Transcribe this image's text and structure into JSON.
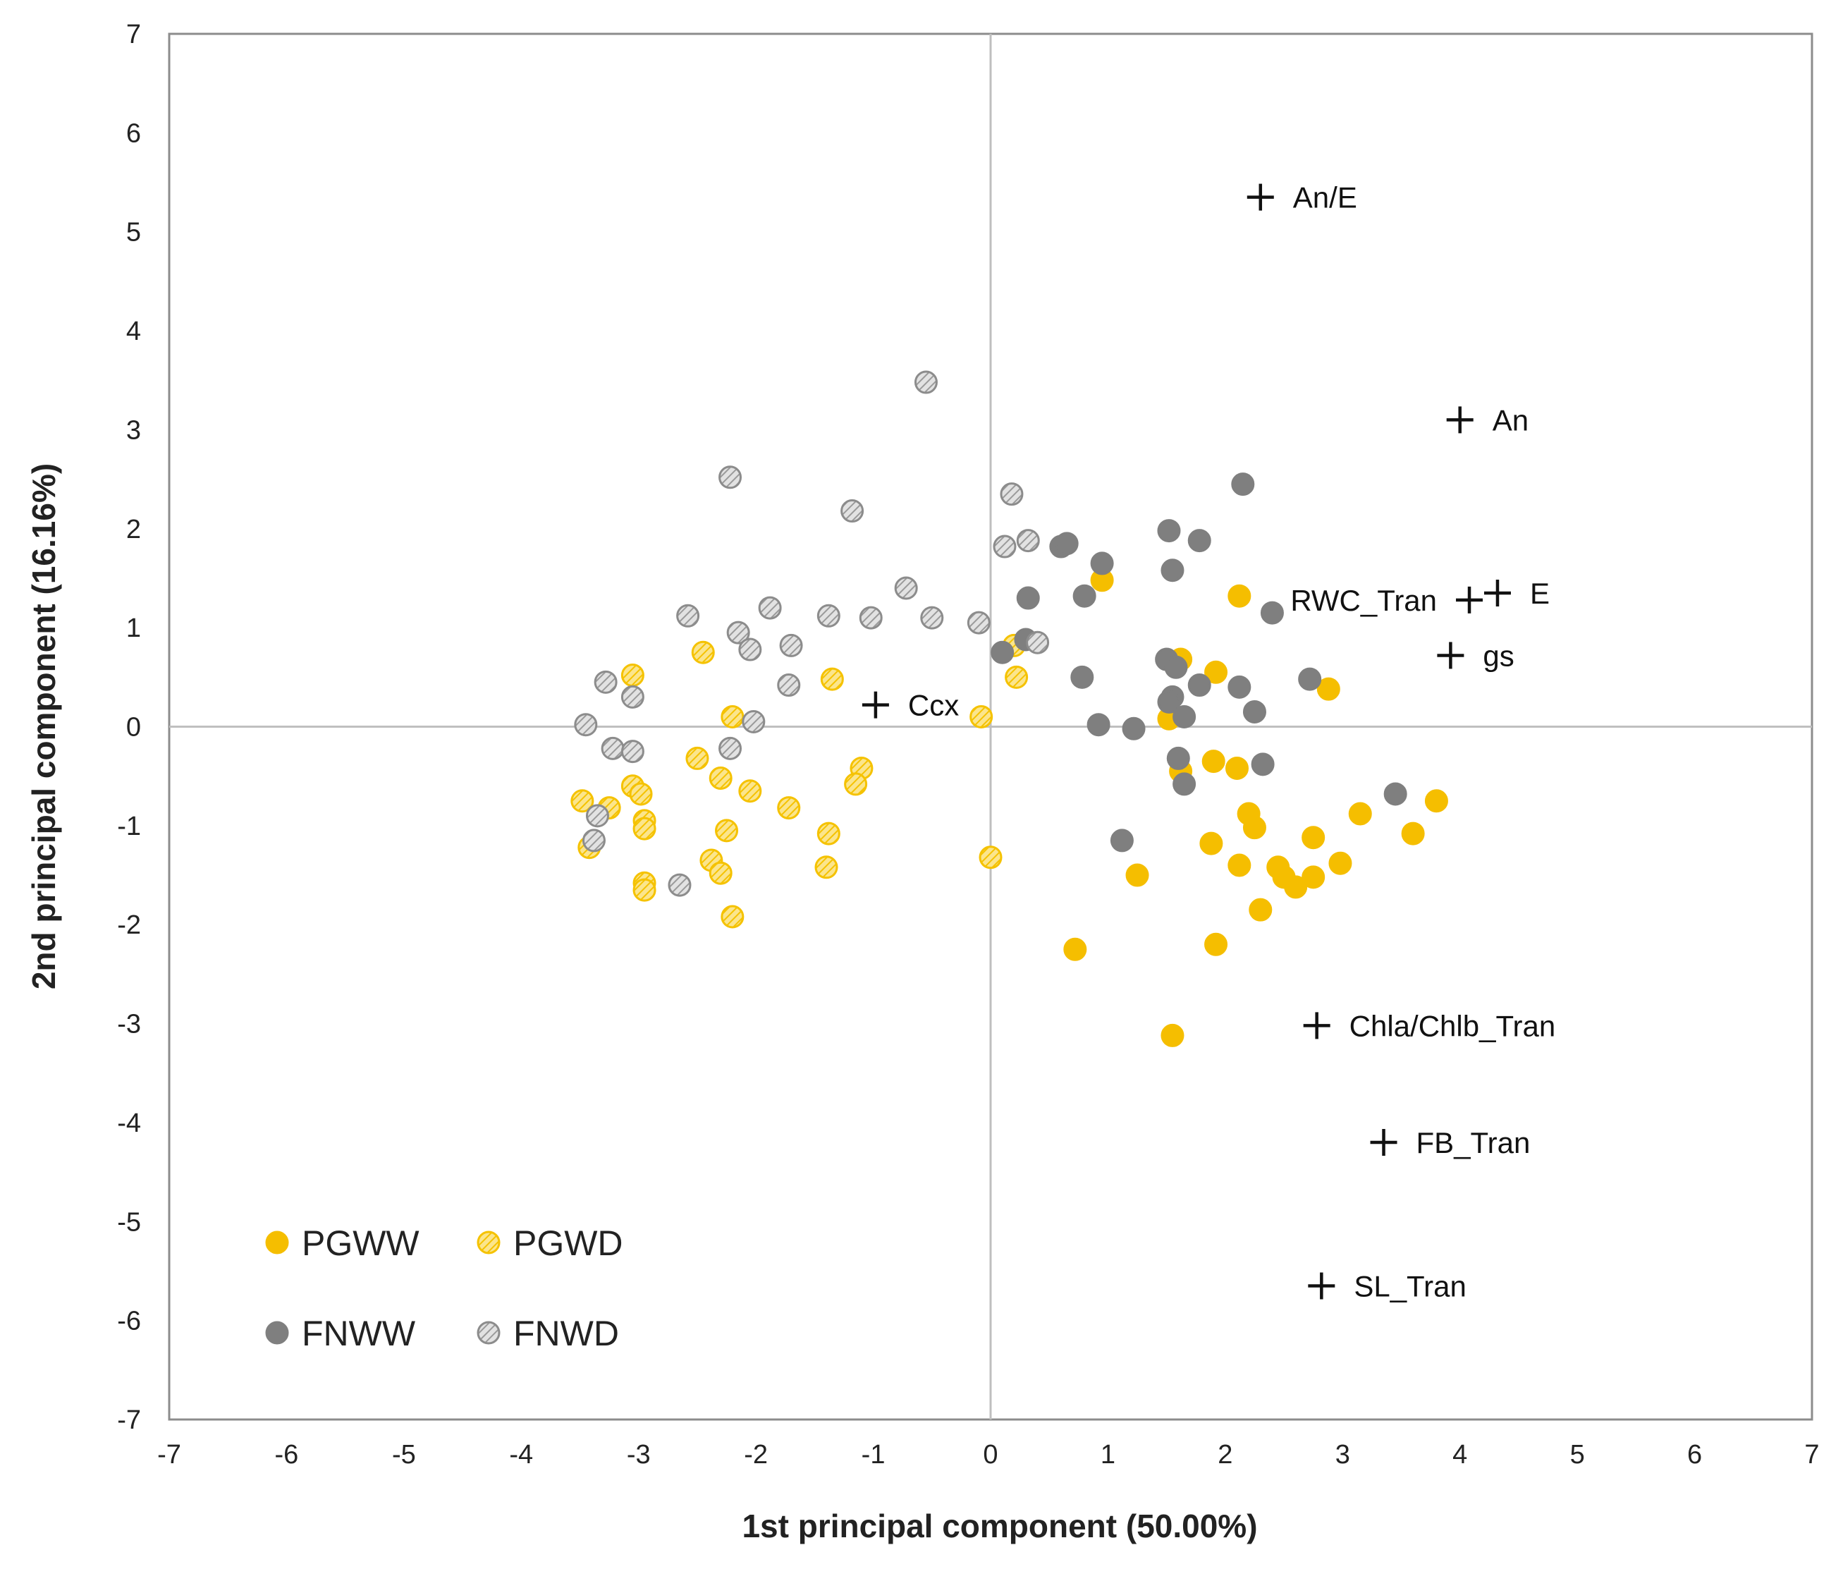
{
  "chart_data": {
    "type": "scatter",
    "title": "",
    "xlabel": "1st  principal component (50.00%)",
    "ylabel": "2nd principal component (16.16%)",
    "xlim": [
      -7,
      7
    ],
    "ylim": [
      -7,
      7
    ],
    "xticks": [
      "-7",
      "-6",
      "-5",
      "-4",
      "-3",
      "-2",
      "-1",
      "0",
      "1",
      "2",
      "3",
      "4",
      "5",
      "6",
      "7"
    ],
    "yticks": [
      "-7",
      "-6",
      "-5",
      "-4",
      "-3",
      "-2",
      "-1",
      "0",
      "1",
      "2",
      "3",
      "4",
      "5",
      "6",
      "7"
    ],
    "grid": false,
    "legend_position": "bottom-left",
    "colors": {
      "PGWW": "#F5BE00",
      "PGWD_stroke": "#F5C200",
      "PGWD_fill": "#FBE58C",
      "FNWW": "#7F7F7F",
      "FNWD_stroke": "#8C8C8C",
      "FNWD_fill": "#D0D0D0",
      "axis": "#BFBFBF",
      "frame": "#8C8C8C",
      "marker": "#111111"
    },
    "series": [
      {
        "name": "PGWW",
        "style": "solid-orange",
        "points": [
          [
            0.95,
            1.48
          ],
          [
            2.12,
            1.32
          ],
          [
            1.62,
            0.68
          ],
          [
            1.92,
            0.55
          ],
          [
            2.88,
            0.38
          ],
          [
            1.52,
            0.08
          ],
          [
            1.9,
            -0.35
          ],
          [
            2.1,
            -0.42
          ],
          [
            1.62,
            -0.45
          ],
          [
            2.2,
            -0.88
          ],
          [
            2.25,
            -1.02
          ],
          [
            1.88,
            -1.18
          ],
          [
            2.75,
            -1.12
          ],
          [
            3.15,
            -0.88
          ],
          [
            3.6,
            -1.08
          ],
          [
            3.8,
            -0.75
          ],
          [
            2.12,
            -1.4
          ],
          [
            2.45,
            -1.42
          ],
          [
            2.5,
            -1.52
          ],
          [
            2.6,
            -1.62
          ],
          [
            2.75,
            -1.52
          ],
          [
            2.98,
            -1.38
          ],
          [
            2.3,
            -1.85
          ],
          [
            1.92,
            -2.2
          ],
          [
            1.25,
            -1.5
          ],
          [
            0.72,
            -2.25
          ],
          [
            1.55,
            -3.12
          ]
        ]
      },
      {
        "name": "PGWD",
        "style": "hatched-orange",
        "points": [
          [
            -3.05,
            0.52
          ],
          [
            -2.45,
            0.75
          ],
          [
            -2.2,
            0.1
          ],
          [
            -1.35,
            0.48
          ],
          [
            -3.05,
            -0.6
          ],
          [
            -2.98,
            -0.68
          ],
          [
            -3.25,
            -0.82
          ],
          [
            -3.48,
            -0.75
          ],
          [
            -3.42,
            -1.22
          ],
          [
            -2.95,
            -0.95
          ],
          [
            -2.95,
            -1.03
          ],
          [
            -2.5,
            -0.32
          ],
          [
            -2.3,
            -0.52
          ],
          [
            -2.05,
            -0.65
          ],
          [
            -1.72,
            -0.82
          ],
          [
            -1.1,
            -0.42
          ],
          [
            -1.15,
            -0.58
          ],
          [
            -2.25,
            -1.05
          ],
          [
            -2.38,
            -1.35
          ],
          [
            -2.3,
            -1.48
          ],
          [
            -1.38,
            -1.08
          ],
          [
            -1.4,
            -1.42
          ],
          [
            -2.95,
            -1.58
          ],
          [
            -2.95,
            -1.65
          ],
          [
            -2.2,
            -1.92
          ],
          [
            -0.08,
            0.1
          ],
          [
            0.22,
            0.5
          ],
          [
            0.2,
            0.82
          ],
          [
            0.0,
            -1.32
          ]
        ]
      },
      {
        "name": "FNWW",
        "style": "solid-gray",
        "points": [
          [
            0.32,
            1.3
          ],
          [
            0.6,
            1.82
          ],
          [
            0.65,
            1.85
          ],
          [
            0.95,
            1.65
          ],
          [
            0.8,
            1.32
          ],
          [
            1.52,
            1.98
          ],
          [
            1.55,
            1.58
          ],
          [
            1.78,
            1.88
          ],
          [
            2.15,
            2.45
          ],
          [
            2.4,
            1.15
          ],
          [
            1.5,
            0.68
          ],
          [
            1.58,
            0.6
          ],
          [
            1.55,
            0.3
          ],
          [
            1.52,
            0.25
          ],
          [
            1.78,
            0.42
          ],
          [
            2.12,
            0.4
          ],
          [
            2.72,
            0.48
          ],
          [
            0.3,
            0.88
          ],
          [
            0.1,
            0.75
          ],
          [
            0.78,
            0.5
          ],
          [
            1.65,
            0.1
          ],
          [
            2.25,
            0.15
          ],
          [
            0.92,
            0.02
          ],
          [
            1.22,
            -0.02
          ],
          [
            1.6,
            -0.32
          ],
          [
            1.65,
            -0.58
          ],
          [
            2.32,
            -0.38
          ],
          [
            3.45,
            -0.68
          ],
          [
            1.12,
            -1.15
          ]
        ]
      },
      {
        "name": "FNWD",
        "style": "hatched-gray",
        "points": [
          [
            -0.55,
            3.48
          ],
          [
            -2.22,
            2.52
          ],
          [
            -1.18,
            2.18
          ],
          [
            0.18,
            2.35
          ],
          [
            0.12,
            1.82
          ],
          [
            0.32,
            1.88
          ],
          [
            -0.72,
            1.4
          ],
          [
            -1.88,
            1.2
          ],
          [
            -1.38,
            1.12
          ],
          [
            -1.02,
            1.1
          ],
          [
            -0.5,
            1.1
          ],
          [
            -0.1,
            1.05
          ],
          [
            -2.58,
            1.12
          ],
          [
            -2.15,
            0.95
          ],
          [
            -2.05,
            0.78
          ],
          [
            -1.7,
            0.82
          ],
          [
            -1.72,
            0.42
          ],
          [
            0.4,
            0.85
          ],
          [
            -3.28,
            0.45
          ],
          [
            -3.05,
            0.3
          ],
          [
            -3.45,
            0.02
          ],
          [
            -2.02,
            0.05
          ],
          [
            -3.22,
            -0.22
          ],
          [
            -3.05,
            -0.25
          ],
          [
            -2.22,
            -0.22
          ],
          [
            -3.35,
            -0.9
          ],
          [
            -3.38,
            -1.15
          ],
          [
            -2.65,
            -1.6
          ]
        ]
      }
    ],
    "variables": [
      {
        "name": "An/E",
        "x": 2.3,
        "y": 5.35
      },
      {
        "name": "An",
        "x": 4.0,
        "y": 3.1
      },
      {
        "name": "RWC_Tran",
        "x": 4.08,
        "y": 1.28
      },
      {
        "name": "E",
        "x": 4.32,
        "y": 1.35
      },
      {
        "name": "gs",
        "x": 3.92,
        "y": 0.72
      },
      {
        "name": "Ccx",
        "x": -0.98,
        "y": 0.22
      },
      {
        "name": "Chla/Chlb_Tran",
        "x": 2.78,
        "y": -3.02
      },
      {
        "name": "FB_Tran",
        "x": 3.35,
        "y": -4.2
      },
      {
        "name": "SL_Tran",
        "x": 2.82,
        "y": -5.65
      }
    ],
    "legend": [
      {
        "name": "PGWW",
        "style": "solid-orange"
      },
      {
        "name": "PGWD",
        "style": "hatched-orange"
      },
      {
        "name": "FNWW",
        "style": "solid-gray"
      },
      {
        "name": "FNWD",
        "style": "hatched-gray"
      }
    ]
  }
}
